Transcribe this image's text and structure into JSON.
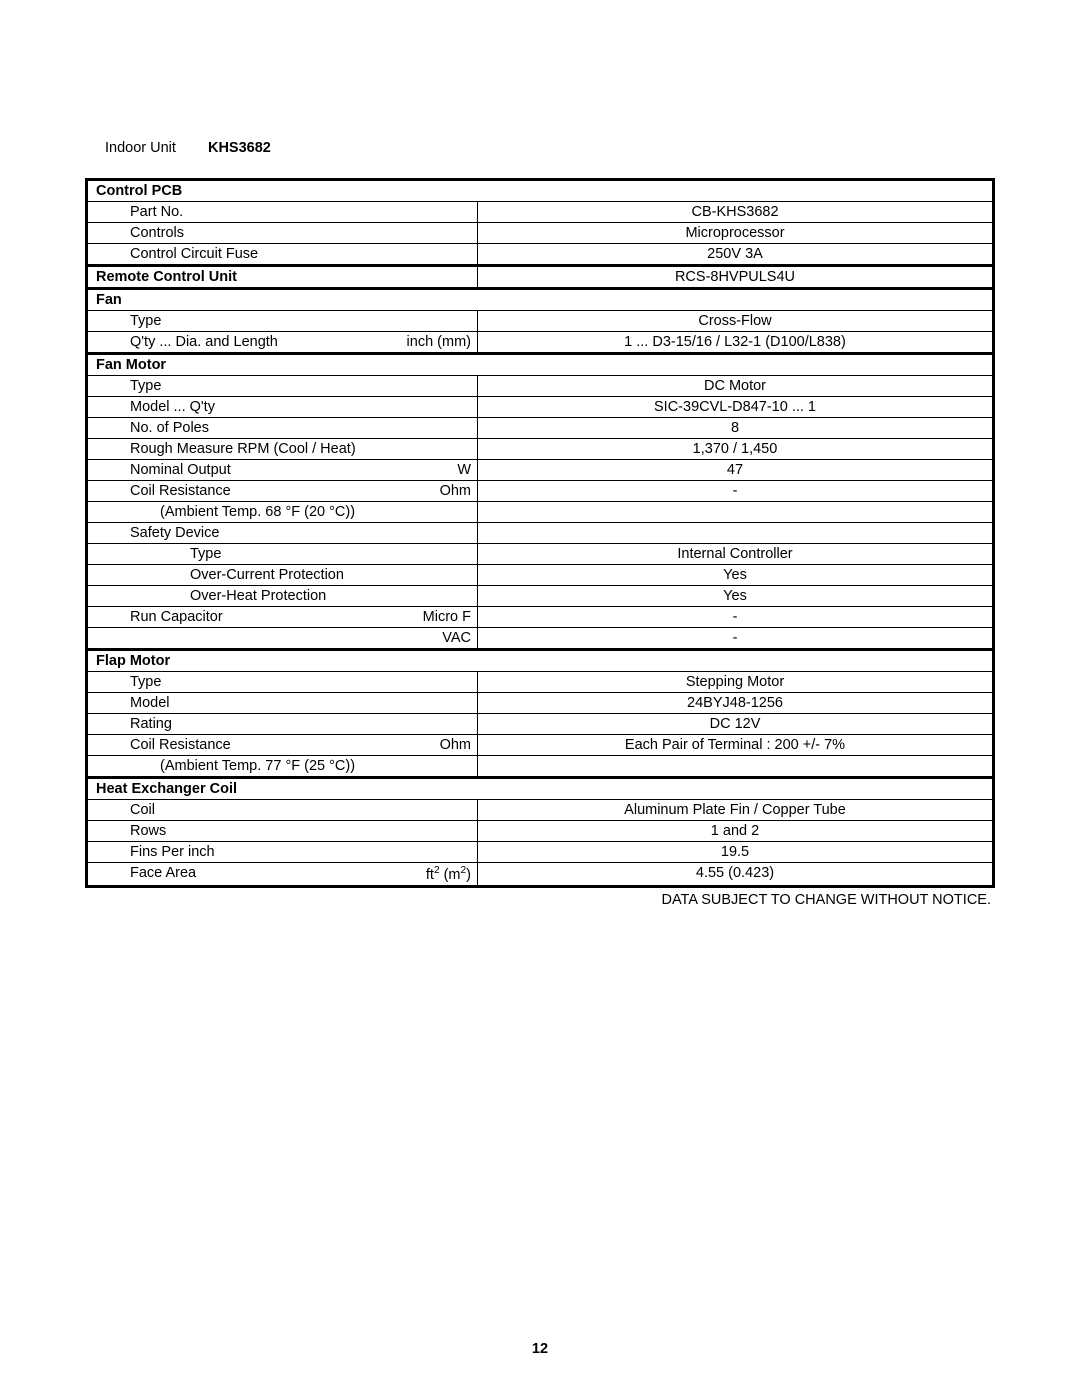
{
  "title": {
    "prefix": "Indoor Unit",
    "model": "KHS3682"
  },
  "sections": {
    "control_pcb": {
      "header": "Control PCB",
      "rows": [
        {
          "label": "Part No.",
          "value": "CB-KHS3682"
        },
        {
          "label": "Controls",
          "value": "Microprocessor"
        },
        {
          "label": "Control Circuit Fuse",
          "value": "250V 3A"
        }
      ]
    },
    "remote": {
      "label": "Remote Control Unit",
      "value": "RCS-8HVPULS4U"
    },
    "fan": {
      "header": "Fan",
      "rows": [
        {
          "label": "Type",
          "value": "Cross-Flow"
        },
        {
          "label": "Q'ty ... Dia. and Length",
          "unit": "inch (mm)",
          "value": "1 ... D3-15/16 / L32-1 (D100/L838)"
        }
      ]
    },
    "fan_motor": {
      "header": "Fan Motor",
      "rows": [
        {
          "label": "Type",
          "value": "DC Motor"
        },
        {
          "label": "Model ... Q'ty",
          "value": "SIC-39CVL-D847-10 ... 1"
        },
        {
          "label": "No. of Poles",
          "value": "8"
        },
        {
          "label": "Rough Measure RPM (Cool / Heat)",
          "value": "1,370 / 1,450"
        },
        {
          "label": "Nominal Output",
          "unit": "W",
          "value": "47"
        },
        {
          "label": "Coil Resistance",
          "unit": "Ohm",
          "value": "-"
        },
        {
          "label": "  (Ambient Temp. 68 °F (20 °C))",
          "value": "",
          "indent": 2,
          "noval": true
        },
        {
          "label": "Safety Device",
          "value": "",
          "noval": true
        },
        {
          "label": "Type",
          "value": "Internal Controller",
          "indent": 3
        },
        {
          "label": "Over-Current Protection",
          "value": "Yes",
          "indent": 3
        },
        {
          "label": "Over-Heat Protection",
          "value": "Yes",
          "indent": 3
        },
        {
          "label": "Run Capacitor",
          "unit": "Micro F",
          "value": "-"
        },
        {
          "label": "",
          "unit": "VAC",
          "value": "-"
        }
      ]
    },
    "flap_motor": {
      "header": "Flap Motor",
      "rows": [
        {
          "label": "Type",
          "value": "Stepping Motor"
        },
        {
          "label": "Model",
          "value": "24BYJ48-1256"
        },
        {
          "label": "Rating",
          "value": "DC 12V"
        },
        {
          "label": "Coil Resistance",
          "unit": "Ohm",
          "value": "Each Pair of Terminal : 200 +/- 7%"
        },
        {
          "label": "  (Ambient Temp. 77 °F (25 °C))",
          "value": "",
          "indent": 2,
          "noval": true
        }
      ]
    },
    "heat_exchanger": {
      "header": "Heat Exchanger Coil",
      "rows": [
        {
          "label": "Coil",
          "value": "Aluminum Plate Fin / Copper Tube"
        },
        {
          "label": "Rows",
          "value": "1 and 2"
        },
        {
          "label": "Fins Per inch",
          "value": "19.5"
        },
        {
          "label": "Face Area",
          "unit_html": "ft<sup>2</sup> (m<sup>2</sup>)",
          "value": "4.55 (0.423)"
        }
      ]
    }
  },
  "note": "DATA SUBJECT TO CHANGE WITHOUT NOTICE.",
  "page_number": "12"
}
